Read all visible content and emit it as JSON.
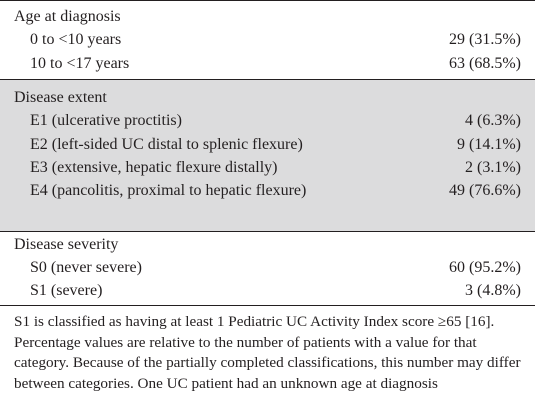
{
  "sections": [
    {
      "heading": "Age at diagnosis",
      "rows": [
        {
          "label": "0 to <10 years",
          "value": "29 (31.5%)"
        },
        {
          "label": "10 to <17 years",
          "value": "63 (68.5%)"
        }
      ]
    },
    {
      "heading": "Disease extent",
      "rows": [
        {
          "label": "E1 (ulcerative proctitis)",
          "value": "4 (6.3%)"
        },
        {
          "label": "E2 (left-sided UC distal to splenic flexure)",
          "value": "9 (14.1%)"
        },
        {
          "label": "E3 (extensive, hepatic flexure distally)",
          "value": "2 (3.1%)"
        },
        {
          "label": "E4 (pancolitis, proximal to hepatic flexure)",
          "value": "49 (76.6%)"
        }
      ]
    },
    {
      "heading": "Disease severity",
      "rows": [
        {
          "label": "S0 (never severe)",
          "value": "60 (95.2%)"
        },
        {
          "label": "S1 (severe)",
          "value": "3 (4.8%)"
        }
      ]
    }
  ],
  "footnote": "S1 is classified as having at least 1 Pediatric UC Activity Index score ≥65 [16]. Percentage values are relative to the number of patients with a value for that category. Because of the partially completed classifications, this number may differ between categories. One UC patient had an unknown age at diagnosis",
  "colors": {
    "text": "#231f20",
    "shade": "#dcdcdd",
    "rule": "#231f20"
  }
}
